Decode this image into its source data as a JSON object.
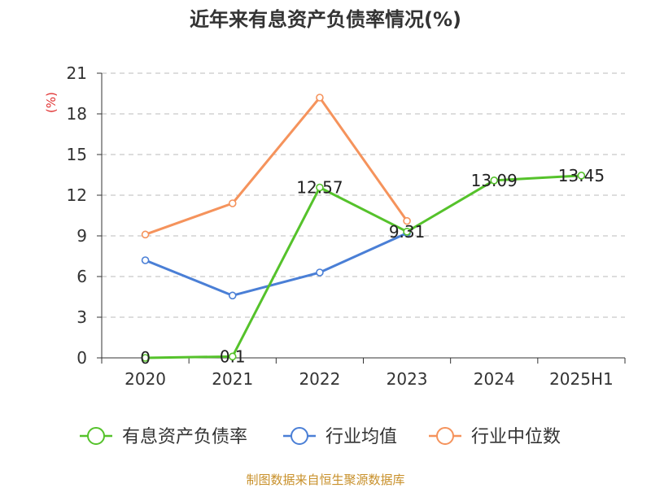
{
  "chart_data": {
    "type": "line",
    "title": "近年来有息资产负债率情况(%)",
    "ylabel": "(%)",
    "xlabel": "",
    "categories": [
      "2020",
      "2021",
      "2022",
      "2023",
      "2024",
      "2025H1"
    ],
    "ylim": [
      0,
      21
    ],
    "yticks": [
      0,
      3,
      6,
      9,
      12,
      15,
      18,
      21
    ],
    "grid": true,
    "legend_position": "bottom",
    "series": [
      {
        "name": "有息资产负债率",
        "color": "#55c22b",
        "values": [
          0,
          0.1,
          12.57,
          9.31,
          13.09,
          13.45
        ],
        "labels": [
          "0",
          "0.1",
          "12.57",
          "9.31",
          "13.09",
          "13.45"
        ]
      },
      {
        "name": "行业均值",
        "color": "#4a7fd6",
        "values": [
          7.2,
          4.6,
          6.3,
          9.2,
          null,
          null
        ]
      },
      {
        "name": "行业中位数",
        "color": "#f5935c",
        "values": [
          9.1,
          11.4,
          19.2,
          10.1,
          null,
          null
        ]
      }
    ],
    "source": "制图数据来自恒生聚源数据库"
  }
}
